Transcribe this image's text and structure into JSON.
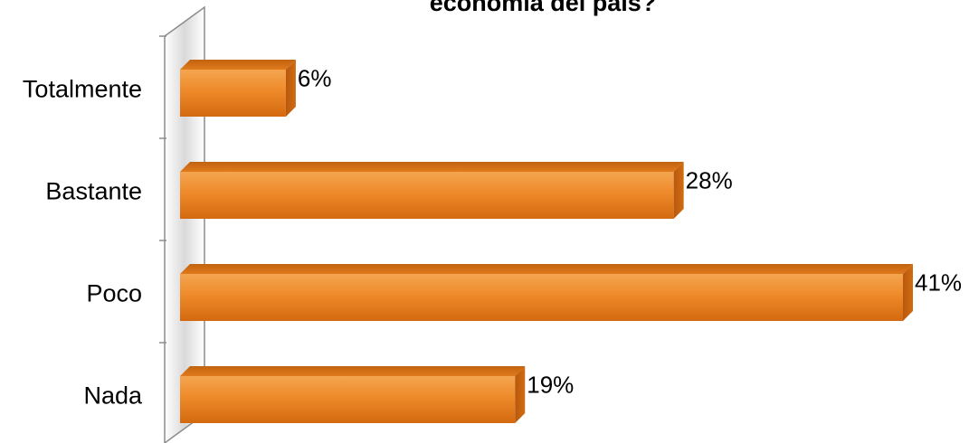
{
  "chart_data": {
    "type": "bar",
    "orientation": "horizontal",
    "title": "economía del país?",
    "categories": [
      "Totalmente",
      "Bastante",
      "Poco",
      "Nada"
    ],
    "values": [
      6,
      28,
      41,
      19
    ],
    "value_labels": [
      "6%",
      "28%",
      "41%",
      "19%"
    ],
    "xlim": [
      0,
      41
    ],
    "grid": false,
    "legend": "none",
    "bar_color": "#e8801c"
  }
}
